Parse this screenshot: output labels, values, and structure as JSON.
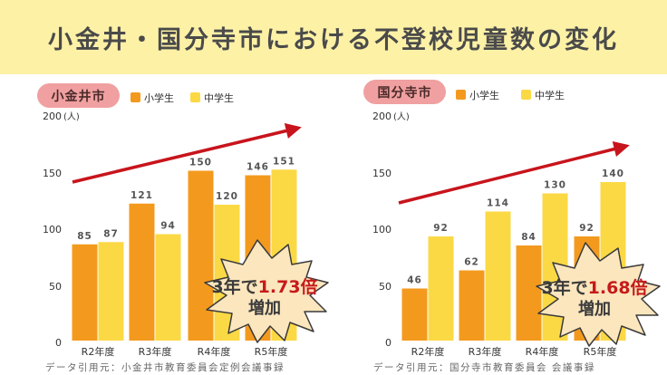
{
  "header": {
    "title": "小金井・国分寺市における不登校児童数の変化"
  },
  "colors": {
    "primary": "#f39a1e",
    "secondary": "#fbd945",
    "arrow": "#c8141c",
    "badge": "#f0a0a0",
    "burst": "#fbe6be",
    "highlight": "#c61a1a"
  },
  "chart_data": [
    {
      "type": "bar",
      "title": "小金井市",
      "y_unit": "(人)",
      "ylim": [
        0,
        200
      ],
      "yticks": [
        "0",
        "50",
        "100",
        "150",
        "200"
      ],
      "categories": [
        "R2年度",
        "R3年度",
        "R4年度",
        "R5年度"
      ],
      "series": [
        {
          "name": "小学生",
          "values": [
            85,
            121,
            150,
            146
          ]
        },
        {
          "name": "中学生",
          "values": [
            87,
            94,
            120,
            151
          ]
        }
      ],
      "callout": {
        "prefix": "3年で",
        "value": "1.73倍",
        "line2": "増加"
      },
      "source": "データ引用元：小金井市教育委員会定例会議事録"
    },
    {
      "type": "bar",
      "title": "国分寺市",
      "y_unit": "(人)",
      "ylim": [
        0,
        200
      ],
      "yticks": [
        "0",
        "50",
        "100",
        "150",
        "200"
      ],
      "categories": [
        "R2年度",
        "R3年度",
        "R4年度",
        "R5年度"
      ],
      "series": [
        {
          "name": "小学生",
          "values": [
            46,
            62,
            84,
            92
          ]
        },
        {
          "name": "中学生",
          "values": [
            92,
            114,
            130,
            140
          ]
        }
      ],
      "callout": {
        "prefix": "3年で",
        "value": "1.68倍",
        "line2": "増加"
      },
      "source": "データ引用元：国分寺市教育委員会 会議事録"
    }
  ]
}
